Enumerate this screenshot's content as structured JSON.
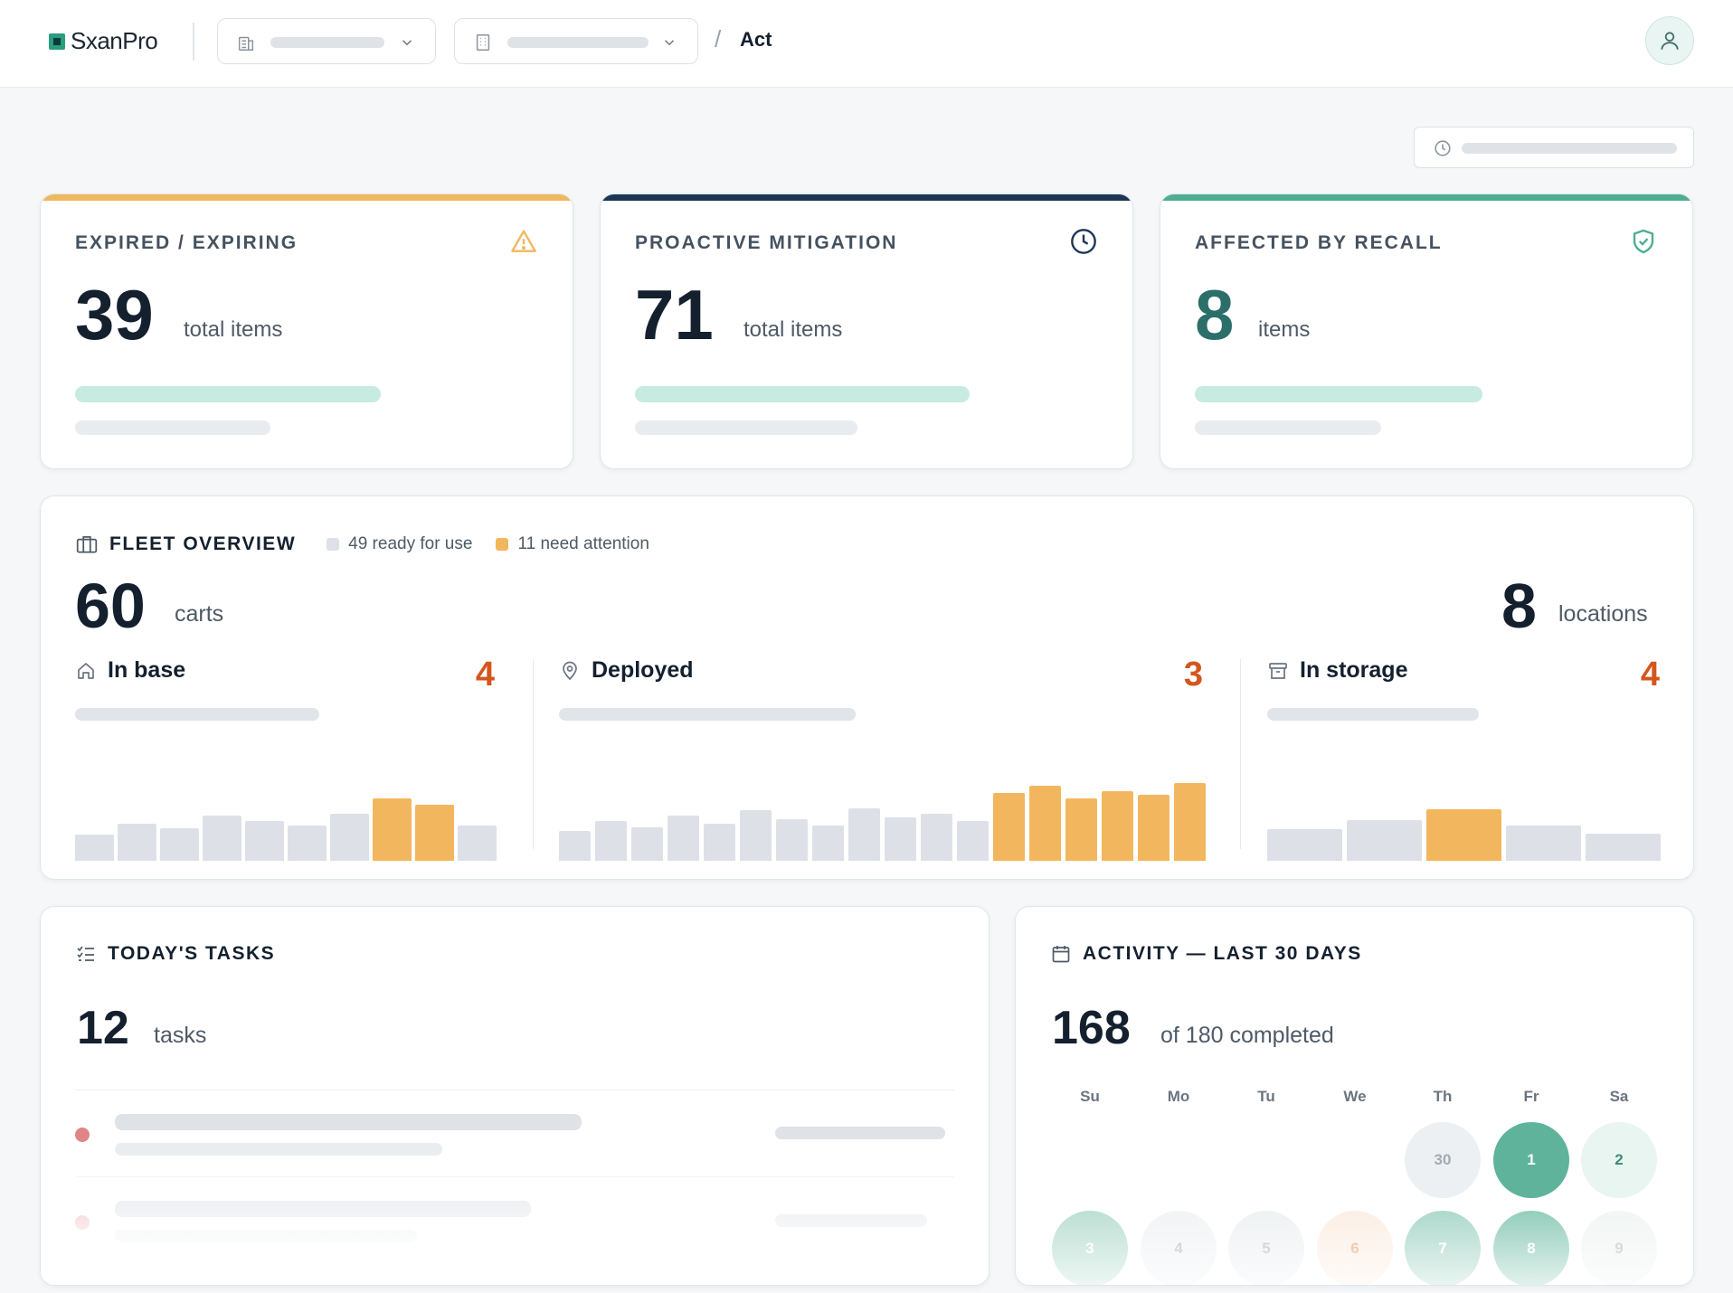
{
  "app": {
    "name": "SxanPro"
  },
  "breadcrumb": {
    "separator": "/",
    "current": "Act"
  },
  "kpis": [
    {
      "title": "EXPIRED / EXPIRING",
      "value": "39",
      "unit": "total items",
      "accent": "#f0b85e",
      "icon": "warning-triangle-icon",
      "value_color": "#14202e"
    },
    {
      "title": "PROACTIVE MITIGATION",
      "value": "71",
      "unit": "total items",
      "accent": "#1d3656",
      "icon": "clock-icon",
      "value_color": "#14202e"
    },
    {
      "title": "AFFECTED BY RECALL",
      "value": "8",
      "unit": "items",
      "accent": "#4fae92",
      "icon": "shield-check-icon",
      "value_color": "#2c6e6a"
    }
  ],
  "fleet": {
    "title": "FLEET OVERVIEW",
    "legend": [
      {
        "label": "49 ready for use",
        "color": "#dde1e7"
      },
      {
        "label": "11 need attention",
        "color": "#f2b75e"
      }
    ],
    "total": "60",
    "total_unit": "carts",
    "locations": "8",
    "locations_unit": "locations",
    "columns": [
      {
        "label": "In base",
        "count": "4",
        "icon": "home-icon",
        "bars": [
          {
            "v": 0.32,
            "hot": false
          },
          {
            "v": 0.46,
            "hot": false
          },
          {
            "v": 0.4,
            "hot": false
          },
          {
            "v": 0.55,
            "hot": false
          },
          {
            "v": 0.49,
            "hot": false
          },
          {
            "v": 0.43,
            "hot": false
          },
          {
            "v": 0.58,
            "hot": false
          },
          {
            "v": 0.77,
            "hot": true
          },
          {
            "v": 0.69,
            "hot": true
          },
          {
            "v": 0.43,
            "hot": false
          }
        ]
      },
      {
        "label": "Deployed",
        "count": "3",
        "icon": "map-pin-icon",
        "bars": [
          {
            "v": 0.38,
            "hot": false
          },
          {
            "v": 0.51,
            "hot": false
          },
          {
            "v": 0.43,
            "hot": false
          },
          {
            "v": 0.58,
            "hot": false
          },
          {
            "v": 0.48,
            "hot": false
          },
          {
            "v": 0.65,
            "hot": false
          },
          {
            "v": 0.54,
            "hot": false
          },
          {
            "v": 0.45,
            "hot": false
          },
          {
            "v": 0.67,
            "hot": false
          },
          {
            "v": 0.56,
            "hot": false
          },
          {
            "v": 0.61,
            "hot": false
          },
          {
            "v": 0.51,
            "hot": false
          },
          {
            "v": 0.87,
            "hot": true
          },
          {
            "v": 0.97,
            "hot": true
          },
          {
            "v": 0.8,
            "hot": true
          },
          {
            "v": 0.9,
            "hot": true
          },
          {
            "v": 0.85,
            "hot": true
          },
          {
            "v": 1.0,
            "hot": true
          }
        ]
      },
      {
        "label": "In storage",
        "count": "4",
        "icon": "archive-box-icon",
        "bars": [
          {
            "v": 0.5,
            "hot": false
          },
          {
            "v": 0.64,
            "hot": false
          },
          {
            "v": 0.82,
            "hot": true
          },
          {
            "v": 0.55,
            "hot": false
          },
          {
            "v": 0.43,
            "hot": false
          }
        ]
      }
    ]
  },
  "tasks": {
    "title": "TODAY'S TASKS",
    "value": "12",
    "unit": "tasks",
    "rows": [
      {
        "dot": "#e08585"
      },
      {
        "dot": "#f1b3b3"
      }
    ]
  },
  "activity": {
    "title": "ACTIVITY — LAST 30 DAYS",
    "value": "168",
    "unit": "of 180 completed",
    "weekdays": [
      "Su",
      "Mo",
      "Tu",
      "We",
      "Th",
      "Fr",
      "Sa"
    ],
    "weeks": [
      [
        null,
        null,
        null,
        null,
        {
          "day": "30",
          "bg": "#edf0f3",
          "fg": "#a2aab3"
        },
        {
          "day": "1",
          "bg": "#5fb39a",
          "fg": "#ffffff"
        },
        {
          "day": "2",
          "bg": "#e9f5f1",
          "fg": "#3f8a78"
        }
      ],
      [
        {
          "day": "3",
          "bg": "#b8ddd1",
          "fg": "#ffffff"
        },
        {
          "day": "4",
          "bg": "#f1f3f5",
          "fg": "#b8bec6"
        },
        {
          "day": "5",
          "bg": "#eef1f3",
          "fg": "#b8bec6"
        },
        {
          "day": "6",
          "bg": "#fbeee4",
          "fg": "#e6a782"
        },
        {
          "day": "7",
          "bg": "#a8d6c8",
          "fg": "#ffffff"
        },
        {
          "day": "8",
          "bg": "#8ccab7",
          "fg": "#ffffff"
        },
        {
          "day": "9",
          "bg": "#f1f5f4",
          "fg": "#b8c4c0"
        }
      ]
    ]
  }
}
